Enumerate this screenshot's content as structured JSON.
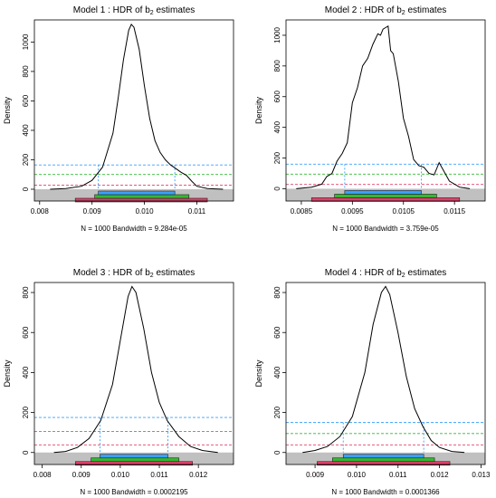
{
  "chart_data": [
    {
      "type": "line",
      "title_prefix": "Model 1 :  HDR of b",
      "title_sub": "2",
      "title_suffix": " estimates",
      "ylabel": "Density",
      "footer": "N = 1000   Bandwidth = 9.284e-05",
      "xlim": [
        0.0079,
        0.0117
      ],
      "ylim": [
        -80,
        1150
      ],
      "x_ticks": [
        0.008,
        0.009,
        0.01,
        0.011
      ],
      "x_tick_labels": [
        "0.008",
        "0.009",
        "0.010",
        "0.011"
      ],
      "y_ticks": [
        0,
        200,
        400,
        600,
        800,
        1000
      ],
      "y_tick_labels": [
        "0",
        "200",
        "400",
        "600",
        "800",
        "1000"
      ],
      "grey_band": [
        -80,
        0
      ],
      "density_x": [
        0.0082,
        0.0085,
        0.0088,
        0.009,
        0.0092,
        0.0094,
        0.0095,
        0.0096,
        0.0097,
        0.00975,
        0.0098,
        0.0099,
        0.01,
        0.0101,
        0.0102,
        0.0103,
        0.0104,
        0.0105,
        0.0106,
        0.0107,
        0.0108,
        0.0109,
        0.011,
        0.0112,
        0.0115
      ],
      "density_y": [
        0,
        5,
        20,
        60,
        150,
        380,
        620,
        880,
        1080,
        1120,
        1100,
        950,
        700,
        480,
        330,
        250,
        200,
        165,
        140,
        115,
        95,
        55,
        20,
        5,
        0
      ],
      "hdr_levels": [
        {
          "color": "#3aa0ff",
          "y": 165,
          "x_from": 0.00912,
          "x_to": 0.01058
        },
        {
          "color": "#33b833",
          "y": 100,
          "x_from": 0.00905,
          "x_to": 0.01085
        },
        {
          "color": "#e0406a",
          "y": 28,
          "x_from": 0.00868,
          "x_to": 0.0112
        }
      ]
    },
    {
      "type": "line",
      "title_prefix": "Model 2 :  HDR of b",
      "title_sub": "2",
      "title_suffix": " estimates",
      "ylabel": "Density",
      "footer": "N = 1000   Bandwidth = 3.759e-05",
      "xlim": [
        0.0082,
        0.0121
      ],
      "ylim": [
        -80,
        1100
      ],
      "x_ticks": [
        0.0085,
        0.0095,
        0.0105,
        0.0115
      ],
      "x_tick_labels": [
        "0.0085",
        "0.0095",
        "0.0105",
        "0.0115"
      ],
      "y_ticks": [
        0,
        200,
        400,
        600,
        800,
        1000
      ],
      "y_tick_labels": [
        "0",
        "200",
        "400",
        "600",
        "800",
        "1000"
      ],
      "grey_band": [
        -80,
        0
      ],
      "density_x": [
        0.0084,
        0.0087,
        0.0089,
        0.009,
        0.0091,
        0.0092,
        0.0093,
        0.0094,
        0.0095,
        0.0096,
        0.0097,
        0.0098,
        0.0099,
        0.01,
        0.01005,
        0.0101,
        0.01015,
        0.0102,
        0.01025,
        0.0103,
        0.0104,
        0.0105,
        0.0106,
        0.0107,
        0.0108,
        0.0109,
        0.011,
        0.0111,
        0.0112,
        0.0114,
        0.0116,
        0.0118
      ],
      "density_y": [
        0,
        10,
        30,
        80,
        100,
        180,
        230,
        300,
        560,
        660,
        800,
        850,
        940,
        1010,
        1000,
        1040,
        1050,
        1060,
        900,
        880,
        700,
        460,
        340,
        190,
        150,
        140,
        100,
        90,
        170,
        50,
        10,
        0
      ],
      "hdr_levels": [
        {
          "color": "#3aa0ff",
          "y": 160,
          "x_from": 0.00935,
          "x_to": 0.01085
        },
        {
          "color": "#33b833",
          "y": 95,
          "x_from": 0.00915,
          "x_to": 0.01115
        },
        {
          "color": "#e0406a",
          "y": 28,
          "x_from": 0.0087,
          "x_to": 0.0116
        }
      ]
    },
    {
      "type": "line",
      "title_prefix": "Model 3 :  HDR of b",
      "title_sub": "2",
      "title_suffix": " estimates",
      "ylabel": "Density",
      "footer": "N = 1000   Bandwidth = 0.0002195",
      "xlim": [
        0.0078,
        0.0129
      ],
      "ylim": [
        -60,
        850
      ],
      "x_ticks": [
        0.008,
        0.009,
        0.01,
        0.011,
        0.012
      ],
      "x_tick_labels": [
        "0.008",
        "0.009",
        "0.010",
        "0.011",
        "0.012"
      ],
      "y_ticks": [
        0,
        200,
        400,
        600,
        800
      ],
      "y_tick_labels": [
        "0",
        "200",
        "400",
        "600",
        "800"
      ],
      "grey_band": [
        -60,
        0
      ],
      "density_x": [
        0.0083,
        0.0086,
        0.0089,
        0.0092,
        0.0095,
        0.0098,
        0.01,
        0.0102,
        0.0103,
        0.0104,
        0.0106,
        0.0108,
        0.011,
        0.0112,
        0.0115,
        0.0118,
        0.0121,
        0.0125
      ],
      "density_y": [
        0,
        5,
        25,
        70,
        160,
        340,
        560,
        780,
        830,
        800,
        620,
        400,
        250,
        160,
        80,
        30,
        10,
        0
      ],
      "hdr_levels": [
        {
          "color": "#3aa0ff",
          "y": 175,
          "x_from": 0.00948,
          "x_to": 0.01122
        },
        {
          "color": "#33b833",
          "y": 105,
          "x_from": 0.00925,
          "x_to": 0.0115
        },
        {
          "color": "#e0406a",
          "y": 38,
          "x_from": 0.00885,
          "x_to": 0.01185
        }
      ]
    },
    {
      "type": "line",
      "title_prefix": "Model 4 :  HDR of b",
      "title_sub": "2",
      "title_suffix": " estimates",
      "ylabel": "Density",
      "footer": "N = 1000   Bandwidth = 0.0001366",
      "xlim": [
        0.0083,
        0.0131
      ],
      "ylim": [
        -60,
        850
      ],
      "x_ticks": [
        0.009,
        0.01,
        0.011,
        0.012,
        0.013
      ],
      "x_tick_labels": [
        "0.009",
        "0.010",
        "0.011",
        "0.012",
        "0.013"
      ],
      "y_ticks": [
        0,
        200,
        400,
        600,
        800
      ],
      "y_tick_labels": [
        "0",
        "200",
        "400",
        "600",
        "800"
      ],
      "grey_band": [
        -60,
        0
      ],
      "density_x": [
        0.0087,
        0.009,
        0.0093,
        0.0096,
        0.0099,
        0.0102,
        0.0104,
        0.0106,
        0.0107,
        0.0108,
        0.011,
        0.0112,
        0.0114,
        0.0116,
        0.0118,
        0.012,
        0.0123,
        0.0126
      ],
      "density_y": [
        0,
        10,
        30,
        80,
        180,
        400,
        640,
        800,
        830,
        790,
        600,
        380,
        220,
        130,
        60,
        25,
        5,
        0
      ],
      "hdr_levels": [
        {
          "color": "#3aa0ff",
          "y": 150,
          "x_from": 0.00968,
          "x_to": 0.01162
        },
        {
          "color": "#33b833",
          "y": 95,
          "x_from": 0.00942,
          "x_to": 0.01188
        },
        {
          "color": "#e0406a",
          "y": 38,
          "x_from": 0.00905,
          "x_to": 0.01225
        }
      ]
    }
  ]
}
